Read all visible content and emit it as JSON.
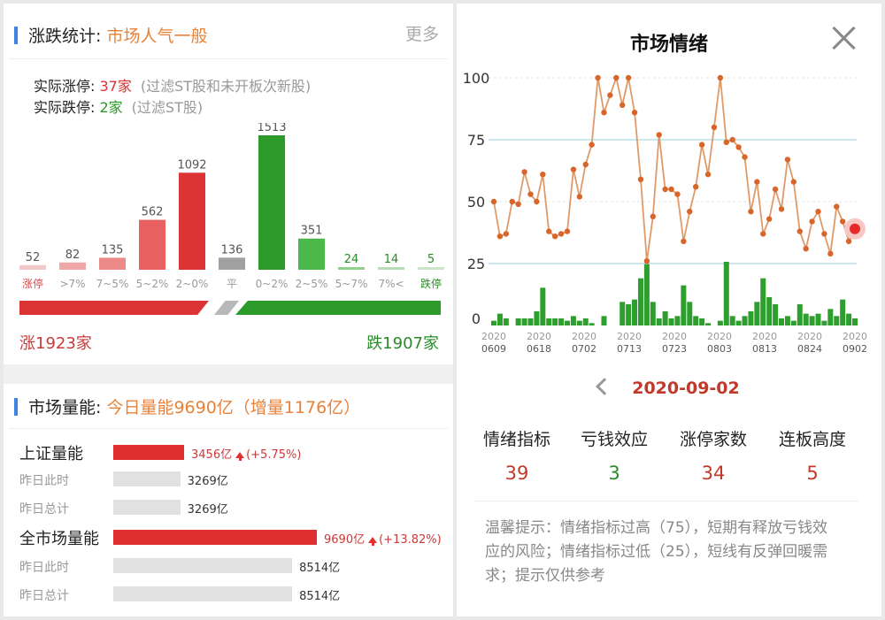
{
  "left": {
    "stats": {
      "title": "涨跌统计: ",
      "title_accent": "市场人气一般",
      "more": "更多",
      "limit_up_label": "实际涨停: ",
      "limit_up_count": "37家",
      "limit_up_note": "(过滤ST股和未开板次新股)",
      "limit_down_label": "实际跌停: ",
      "limit_down_count": "2家",
      "limit_down_note": "(过滤ST股)"
    },
    "distribution": {
      "categories": [
        "涨停",
        ">7%",
        "7~5%",
        "5~2%",
        "2~0%",
        "平",
        "0~2%",
        "2~5%",
        "5~7%",
        "7%<",
        "跌停"
      ],
      "values": [
        52,
        82,
        135,
        562,
        1092,
        136,
        1513,
        351,
        24,
        14,
        5
      ],
      "value_labels": [
        "52",
        "82",
        "135",
        "562",
        "1092",
        "136",
        "1513",
        "351",
        "24",
        "14",
        "5"
      ],
      "colors": [
        "#f2c8c8",
        "#f0a6a6",
        "#ec8a8a",
        "#e86060",
        "#dc3434",
        "#a0a0a0",
        "#2b9a2b",
        "#4cb84c",
        "#8fd08f",
        "#b5dcb5",
        "#c9e6c9"
      ],
      "label_colors": [
        "#d05050",
        "#999999",
        "#999999",
        "#999999",
        "#999999",
        "#999999",
        "#999999",
        "#999999",
        "#999999",
        "#999999",
        "#2a8a2a"
      ],
      "value_colors": [
        "#555555",
        "#555555",
        "#555555",
        "#555555",
        "#555555",
        "#555555",
        "#555555",
        "#555555",
        "#2a8a2a",
        "#2a8a2a",
        "#2a8a2a"
      ]
    },
    "totals": {
      "up": "涨1923家",
      "down": "跌1907家"
    },
    "volume": {
      "title": "市场量能: ",
      "title_accent": "今日量能9690亿（增量1176亿）",
      "rows": [
        {
          "label": "上证量能",
          "kind": "main",
          "value": 3456,
          "value_text": "3456亿",
          "change": "(+5.75%)"
        },
        {
          "label": "昨日此时",
          "kind": "sub",
          "value": 3269,
          "value_text": "3269亿",
          "change": ""
        },
        {
          "label": "昨日总计",
          "kind": "sub",
          "value": 3269,
          "value_text": "3269亿",
          "change": ""
        },
        {
          "label": "全市场量能",
          "kind": "main",
          "value": 9690,
          "value_text": "9690亿",
          "change": "(+13.82%)"
        },
        {
          "label": "昨日此时",
          "kind": "sub",
          "value": 8514,
          "value_text": "8514亿",
          "change": ""
        },
        {
          "label": "昨日总计",
          "kind": "sub",
          "value": 8514,
          "value_text": "8514亿",
          "change": ""
        }
      ]
    }
  },
  "right": {
    "title": "市场情绪",
    "selected_date": "2020-09-02",
    "metrics": [
      {
        "label": "情绪指标",
        "value": "39",
        "color": "red"
      },
      {
        "label": "亏钱效应",
        "value": "3",
        "color": "green"
      },
      {
        "label": "涨停家数",
        "value": "34",
        "color": "red"
      },
      {
        "label": "连板高度",
        "value": "5",
        "color": "red"
      }
    ],
    "tip": "温馨提示：情绪指标过高（75），短期有释放亏钱效应的风险；情绪指标过低（25），短线有反弹回暖需求；提示仅供参考"
  },
  "chart_data": {
    "type": "line",
    "y_ticks": [
      "100",
      "75",
      "50",
      "25",
      "0"
    ],
    "ylim": [
      0,
      100
    ],
    "reference_lines": [
      75,
      25
    ],
    "x_tick_labels": [
      {
        "year": "2020",
        "date": "0609"
      },
      {
        "year": "2020",
        "date": "0618"
      },
      {
        "year": "2020",
        "date": "0702"
      },
      {
        "year": "2020",
        "date": "0713"
      },
      {
        "year": "2020",
        "date": "0723"
      },
      {
        "year": "2020",
        "date": "0803"
      },
      {
        "year": "2020",
        "date": "0813"
      },
      {
        "year": "2020",
        "date": "0824"
      },
      {
        "year": "2020",
        "date": "0902"
      }
    ],
    "series": [
      {
        "values": [
          50,
          36,
          37,
          50,
          49,
          62,
          53,
          50,
          61,
          38,
          36,
          37,
          38,
          63,
          52,
          65,
          73,
          100,
          86,
          93,
          100,
          89,
          100,
          86,
          59,
          26,
          44,
          77,
          55,
          55,
          53,
          34,
          46,
          56,
          73,
          61,
          80,
          100,
          74,
          75,
          72,
          68,
          46,
          58,
          37,
          43,
          55,
          47,
          67,
          58,
          38,
          31,
          42,
          46,
          37,
          29,
          48,
          42,
          34,
          39
        ],
        "highlight_last": true
      },
      {
        "type": "bar",
        "values": [
          2,
          5,
          3,
          0,
          3,
          3,
          3,
          6,
          16,
          3,
          3,
          3,
          2,
          4,
          2,
          3,
          1,
          0,
          4,
          0,
          0,
          10,
          9,
          11,
          20,
          26,
          10,
          3,
          6,
          3,
          4,
          17,
          10,
          4,
          3,
          1,
          0,
          2,
          27,
          4,
          2,
          4,
          6,
          10,
          20,
          12,
          9,
          3,
          4,
          2,
          9,
          5,
          4,
          5,
          2,
          7,
          4,
          11,
          5,
          3
        ]
      }
    ]
  }
}
